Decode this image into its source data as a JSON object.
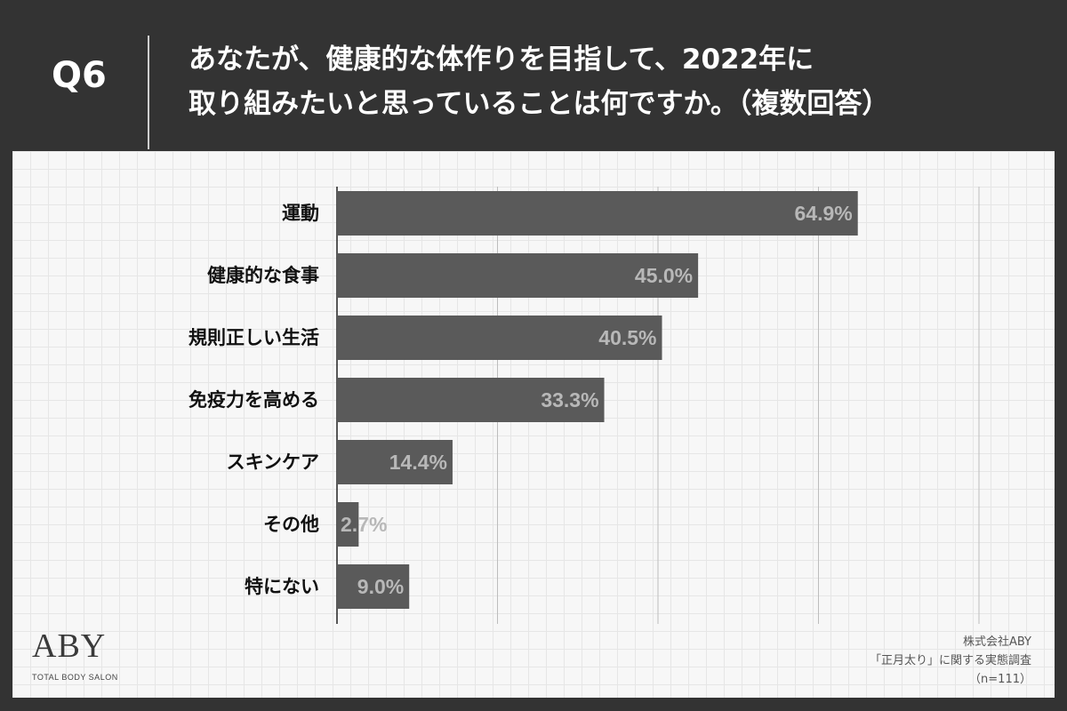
{
  "header": {
    "question_number": "Q6",
    "title_line1": "あなたが、健康的な体作りを目指して、2022年に",
    "title_line2": "取り組みたいと思っていることは何ですか。（複数回答）"
  },
  "chart_data": {
    "type": "bar",
    "orientation": "horizontal",
    "categories": [
      "運動",
      "健康的な食事",
      "規則正しい生活",
      "免疫力を高める",
      "スキンケア",
      "その他",
      "特にない"
    ],
    "values": [
      64.9,
      45.0,
      40.5,
      33.3,
      14.4,
      2.7,
      9.0
    ],
    "value_labels": [
      "64.9%",
      "45.0%",
      "40.5%",
      "33.3%",
      "14.4%",
      "2.7%",
      "9.0%"
    ],
    "xlim": [
      0,
      80
    ],
    "grid": true,
    "bar_color": "#5a5a5a",
    "label_color": "#b8b8b8"
  },
  "branding": {
    "logo_text": "ABY",
    "logo_subtitle": "TOTAL BODY SALON"
  },
  "source": {
    "company": "株式会社ABY",
    "survey": "「正月太り」に関する実態調査",
    "sample": "（n=111）"
  }
}
